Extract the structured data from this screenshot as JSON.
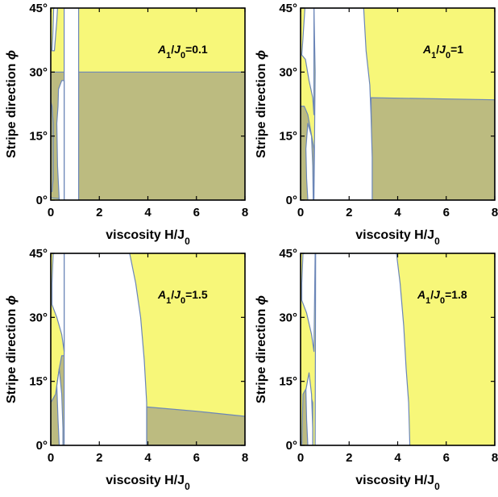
{
  "colors": {
    "yellow_region": "#f7f779",
    "olive_region": "#bcbb80",
    "boundary": "#6b86b8",
    "white_region": "#ffffff"
  },
  "chart_data": [
    {
      "type": "area",
      "annotation": {
        "var": "A",
        "sub1": "1",
        "slash": "/",
        "var2": "J",
        "sub2": "0",
        "value": "=0.1"
      },
      "xlabel": {
        "text": "viscosity H/J",
        "sub": "0"
      },
      "ylabel": {
        "text": "Stripe direction ",
        "sym": "ϕ"
      },
      "xlim": [
        0,
        8
      ],
      "ylim": [
        0,
        45
      ],
      "xticks": [
        "0",
        "2",
        "4",
        "6",
        "8"
      ],
      "yticks": [
        "0°",
        "15°",
        "30°",
        "45°"
      ],
      "regions": [
        {
          "name": "yellow",
          "polygon": [
            [
              0,
              0
            ],
            [
              8,
              0
            ],
            [
              8,
              45
            ],
            [
              0,
              45
            ]
          ]
        },
        {
          "name": "olive",
          "polygon": [
            [
              1.15,
              0
            ],
            [
              8,
              0
            ],
            [
              8,
              30
            ],
            [
              0,
              30
            ],
            [
              0,
              0.5
            ]
          ]
        },
        {
          "name": "white",
          "polygon": [
            [
              0.55,
              0
            ],
            [
              0.55,
              45
            ],
            [
              1.15,
              45
            ],
            [
              1.15,
              0
            ]
          ]
        },
        {
          "name": "white",
          "polygon": [
            [
              0.35,
              0
            ],
            [
              0.28,
              8
            ],
            [
              0.25,
              18
            ],
            [
              0.3,
              22
            ],
            [
              0.32,
              26
            ],
            [
              0.45,
              28
            ],
            [
              0.55,
              28
            ],
            [
              0.55,
              0
            ]
          ]
        },
        {
          "name": "white",
          "polygon": [
            [
              0.12,
              45
            ],
            [
              0.08,
              38
            ],
            [
              0.05,
              35
            ],
            [
              0.15,
              35
            ],
            [
              0.25,
              42
            ],
            [
              0.28,
              45
            ]
          ]
        },
        {
          "name": "olive",
          "polygon": [
            [
              0.05,
              2
            ],
            [
              0.1,
              5
            ],
            [
              0.1,
              18
            ],
            [
              0.05,
              22
            ],
            [
              0,
              23
            ],
            [
              0,
              2
            ]
          ]
        }
      ]
    },
    {
      "type": "area",
      "annotation": {
        "var": "A",
        "sub1": "1",
        "slash": "/",
        "var2": "J",
        "sub2": "0",
        "value": "=1"
      },
      "xlabel": {
        "text": "viscosity H/J",
        "sub": "0"
      },
      "ylabel": {
        "text": "Stripe direction ",
        "sym": "ϕ"
      },
      "xlim": [
        0,
        8
      ],
      "ylim": [
        0,
        45
      ],
      "xticks": [
        "0",
        "2",
        "4",
        "6",
        "8"
      ],
      "yticks": [
        "0°",
        "15°",
        "30°",
        "45°"
      ],
      "regions": [
        {
          "name": "yellow",
          "polygon": [
            [
              0,
              0
            ],
            [
              8,
              0
            ],
            [
              8,
              45
            ],
            [
              0,
              45
            ]
          ]
        },
        {
          "name": "olive",
          "polygon": [
            [
              2.95,
              0
            ],
            [
              8,
              0
            ],
            [
              8,
              23.5
            ],
            [
              2.9,
              24
            ]
          ]
        },
        {
          "name": "olive",
          "polygon": [
            [
              0,
              0
            ],
            [
              0.55,
              0
            ],
            [
              0.55,
              12
            ],
            [
              0.3,
              20
            ],
            [
              0.15,
              22
            ],
            [
              0,
              22
            ]
          ]
        },
        {
          "name": "white",
          "polygon": [
            [
              0.55,
              0
            ],
            [
              0.6,
              30
            ],
            [
              0.55,
              45
            ],
            [
              2.6,
              45
            ],
            [
              2.7,
              35
            ],
            [
              2.85,
              27
            ],
            [
              2.9,
              20
            ],
            [
              2.95,
              10
            ],
            [
              2.95,
              0
            ]
          ]
        },
        {
          "name": "white",
          "polygon": [
            [
              0.18,
              45
            ],
            [
              0.1,
              38
            ],
            [
              0.05,
              34
            ],
            [
              0.2,
              33
            ],
            [
              0.35,
              28
            ],
            [
              0.5,
              24
            ],
            [
              0.55,
              20
            ],
            [
              0.55,
              45
            ]
          ]
        },
        {
          "name": "white",
          "polygon": [
            [
              0.3,
              0
            ],
            [
              0.25,
              5
            ],
            [
              0.22,
              12
            ],
            [
              0.3,
              18
            ],
            [
              0.45,
              15
            ],
            [
              0.5,
              8
            ],
            [
              0.52,
              0
            ]
          ]
        }
      ]
    },
    {
      "type": "area",
      "annotation": {
        "var": "A",
        "sub1": "1",
        "slash": "/",
        "var2": "J",
        "sub2": "0",
        "value": "=1.5"
      },
      "xlabel": {
        "text": "viscosity H/J",
        "sub": "0"
      },
      "ylabel": {
        "text": "Stripe direction ",
        "sym": "ϕ"
      },
      "xlim": [
        0,
        8
      ],
      "ylim": [
        0,
        45
      ],
      "xticks": [
        "0",
        "2",
        "4",
        "6",
        "8"
      ],
      "yticks": [
        "0°",
        "15°",
        "30°",
        "45°"
      ],
      "regions": [
        {
          "name": "yellow",
          "polygon": [
            [
              0,
              0
            ],
            [
              8,
              0
            ],
            [
              8,
              45
            ],
            [
              0,
              45
            ]
          ]
        },
        {
          "name": "olive",
          "polygon": [
            [
              3.95,
              0
            ],
            [
              8,
              0
            ],
            [
              8,
              6.8
            ],
            [
              6,
              8
            ],
            [
              3.95,
              9
            ]
          ]
        },
        {
          "name": "olive",
          "polygon": [
            [
              0,
              0
            ],
            [
              0.55,
              0
            ],
            [
              0.55,
              21
            ],
            [
              0.45,
              21
            ],
            [
              0.35,
              18
            ],
            [
              0.2,
              12
            ],
            [
              0,
              10
            ]
          ]
        },
        {
          "name": "white",
          "polygon": [
            [
              0.55,
              0
            ],
            [
              0.55,
              45
            ],
            [
              3.25,
              45
            ],
            [
              3.5,
              38
            ],
            [
              3.7,
              30
            ],
            [
              3.85,
              20
            ],
            [
              3.95,
              10
            ],
            [
              3.95,
              0
            ]
          ]
        },
        {
          "name": "white",
          "polygon": [
            [
              0.1,
              45
            ],
            [
              0.05,
              38
            ],
            [
              0.05,
              33
            ],
            [
              0.25,
              30
            ],
            [
              0.45,
              26
            ],
            [
              0.55,
              22
            ],
            [
              0.55,
              45
            ]
          ]
        },
        {
          "name": "white",
          "polygon": [
            [
              0.35,
              0
            ],
            [
              0.3,
              6
            ],
            [
              0.25,
              14
            ],
            [
              0.35,
              18
            ],
            [
              0.45,
              12
            ],
            [
              0.5,
              4
            ],
            [
              0.5,
              0
            ]
          ]
        }
      ]
    },
    {
      "type": "area",
      "annotation": {
        "var": "A",
        "sub1": "1",
        "slash": "/",
        "var2": "J",
        "sub2": "0",
        "value": "=1.8"
      },
      "xlabel": {
        "text": "viscosity H/J",
        "sub": "0"
      },
      "ylabel": {
        "text": "Stripe direction ",
        "sym": "ϕ"
      },
      "xlim": [
        0,
        8
      ],
      "ylim": [
        0,
        45
      ],
      "xticks": [
        "0",
        "2",
        "4",
        "6",
        "8"
      ],
      "yticks": [
        "0°",
        "15°",
        "30°",
        "45°"
      ],
      "regions": [
        {
          "name": "yellow",
          "polygon": [
            [
              0,
              0
            ],
            [
              8,
              0
            ],
            [
              8,
              45
            ],
            [
              0,
              45
            ]
          ]
        },
        {
          "name": "olive",
          "polygon": [
            [
              0.05,
              0
            ],
            [
              0.5,
              0
            ],
            [
              0.5,
              10
            ],
            [
              0.3,
              14
            ],
            [
              0.1,
              12
            ]
          ]
        },
        {
          "name": "white",
          "polygon": [
            [
              0.6,
              0
            ],
            [
              0.62,
              45
            ],
            [
              3.95,
              45
            ],
            [
              4.1,
              38
            ],
            [
              4.25,
              28
            ],
            [
              4.35,
              18
            ],
            [
              4.45,
              10
            ],
            [
              4.5,
              0
            ]
          ]
        },
        {
          "name": "white",
          "polygon": [
            [
              0.1,
              45
            ],
            [
              0.05,
              38
            ],
            [
              0.05,
              34
            ],
            [
              0.25,
              31
            ],
            [
              0.45,
              26
            ],
            [
              0.55,
              22
            ],
            [
              0.6,
              45
            ]
          ]
        },
        {
          "name": "white",
          "polygon": [
            [
              0.3,
              0
            ],
            [
              0.25,
              6
            ],
            [
              0.22,
              13
            ],
            [
              0.35,
              17
            ],
            [
              0.45,
              12
            ],
            [
              0.5,
              4
            ],
            [
              0.5,
              0
            ]
          ]
        }
      ]
    }
  ]
}
